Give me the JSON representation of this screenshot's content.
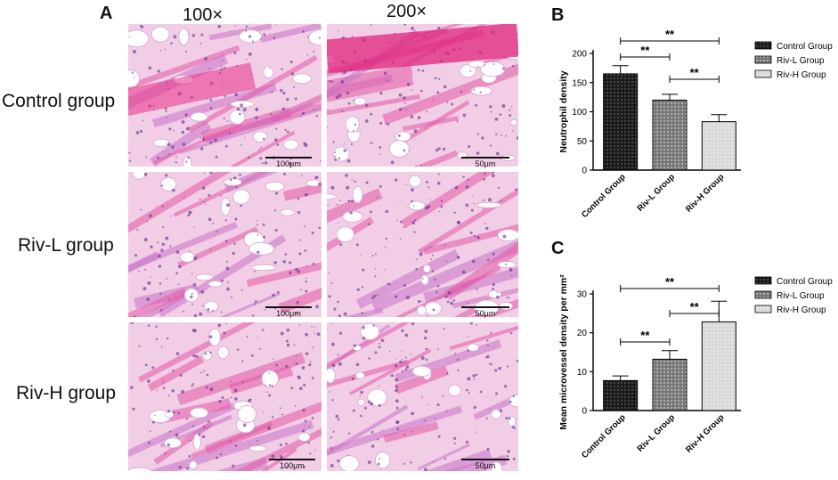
{
  "panels": {
    "a": "A",
    "b": "B",
    "c": "C"
  },
  "magnifications": [
    "100×",
    "200×"
  ],
  "row_labels": [
    "Control group",
    "Riv-L group",
    "Riv-H group"
  ],
  "scale_bars": [
    "100μm",
    "50μm"
  ],
  "chart_data": [
    {
      "type": "bar",
      "categories": [
        "Control Group",
        "Riv-L Group",
        "Riv-H Group"
      ],
      "values": [
        165,
        120,
        83
      ],
      "errors": [
        14,
        10,
        12
      ],
      "ylabel": "Neutrophil density",
      "xlabel": "",
      "ylim": [
        0,
        200
      ],
      "yticks": [
        0,
        50,
        100,
        150,
        200
      ],
      "legend": [
        "Control Group",
        "Riv-L Group",
        "Riv-H Group"
      ],
      "legend_position": "right",
      "significance": [
        {
          "from": 0,
          "to": 2,
          "label": "**"
        },
        {
          "from": 0,
          "to": 1,
          "label": "**"
        },
        {
          "from": 1,
          "to": 2,
          "label": "**"
        }
      ]
    },
    {
      "type": "bar",
      "categories": [
        "Control Group",
        "Riv-L Group",
        "Riv-H Group"
      ],
      "values": [
        7.7,
        13.2,
        22.8
      ],
      "errors": [
        1.2,
        2.2,
        5.3
      ],
      "ylabel": "Mean microvessel density per mm²",
      "xlabel": "",
      "ylim": [
        0,
        30
      ],
      "yticks": [
        0,
        10,
        20,
        30
      ],
      "legend": [
        "Control Group",
        "Riv-L Group",
        "Riv-H Group"
      ],
      "legend_position": "right",
      "significance": [
        {
          "from": 0,
          "to": 2,
          "label": "**"
        },
        {
          "from": 1,
          "to": 2,
          "label": "**"
        },
        {
          "from": 0,
          "to": 1,
          "label": "**"
        }
      ]
    }
  ]
}
